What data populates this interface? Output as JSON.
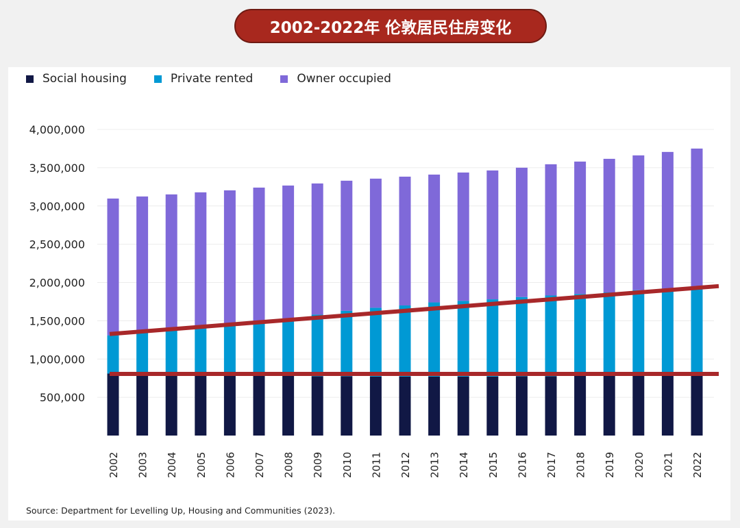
{
  "title": "2002-2022年 伦敦居民住房变化",
  "source": "Source: Department for Levelling Up, Housing and Communities (2023).",
  "colors": {
    "social": "#111845",
    "private": "#0099d4",
    "owner": "#7f69d9",
    "annotation": "#a8282a",
    "title_bg": "#a8281e"
  },
  "chart_data": {
    "type": "bar",
    "stacked": true,
    "categories": [
      "2002",
      "2003",
      "2004",
      "2005",
      "2006",
      "2007",
      "2008",
      "2009",
      "2010",
      "2011",
      "2012",
      "2013",
      "2014",
      "2015",
      "2016",
      "2017",
      "2018",
      "2019",
      "2020",
      "2021",
      "2022"
    ],
    "series": [
      {
        "name": "Social housing",
        "values": [
          810000,
          800000,
          795000,
          790000,
          785000,
          780000,
          780000,
          775000,
          775000,
          770000,
          770000,
          770000,
          770000,
          770000,
          775000,
          775000,
          780000,
          780000,
          785000,
          785000,
          790000
        ]
      },
      {
        "name": "Private rented",
        "values": [
          500000,
          550000,
          575000,
          610000,
          655000,
          700000,
          750000,
          805000,
          855000,
          900000,
          930000,
          970000,
          990000,
          1010000,
          1035000,
          1055000,
          1070000,
          1090000,
          1115000,
          1115000,
          1130000
        ]
      },
      {
        "name": "Owner occupied",
        "values": [
          1787000,
          1774000,
          1781000,
          1778000,
          1764000,
          1760000,
          1737000,
          1714000,
          1700000,
          1687000,
          1683000,
          1670000,
          1677000,
          1684000,
          1690000,
          1715000,
          1730000,
          1746000,
          1761000,
          1806000,
          1830000
        ]
      }
    ],
    "yticks": [
      "500,000",
      "1,000,000",
      "1,500,000",
      "2,000,000",
      "2,500,000",
      "3,000,000",
      "3,500,000",
      "4,000,000"
    ],
    "ytick_values": [
      500000,
      1000000,
      1500000,
      2000000,
      2500000,
      3000000,
      3500000,
      4000000
    ],
    "ylim": [
      0,
      4000000
    ],
    "grid": true,
    "legend_placement": "top-left",
    "annotations": [
      {
        "type": "trend-line",
        "from": [
          "2002",
          1330000
        ],
        "to": [
          "2022",
          1930000
        ]
      },
      {
        "type": "horizontal-line",
        "y": 805000
      }
    ]
  }
}
